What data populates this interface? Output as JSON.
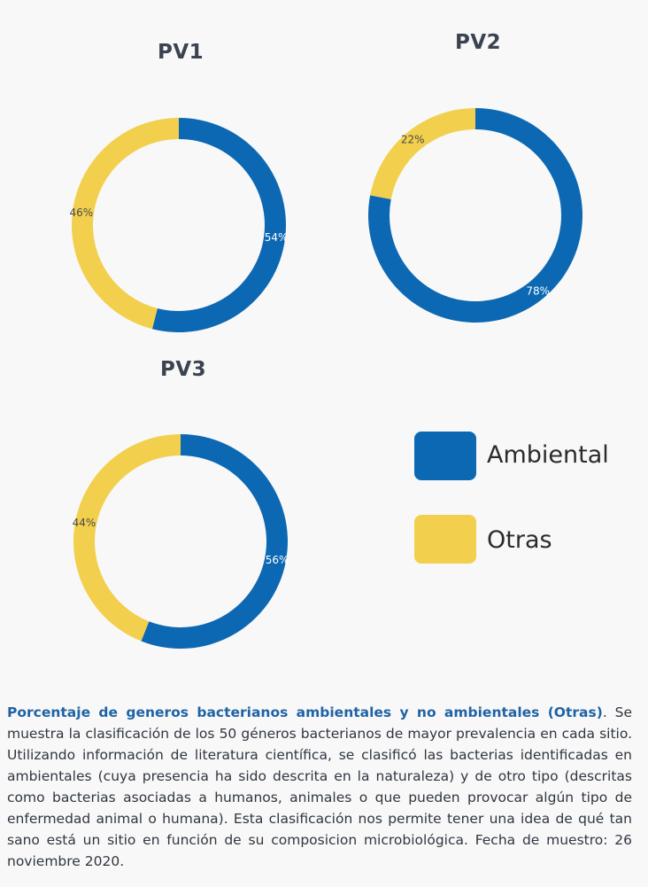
{
  "chart_data": [
    {
      "type": "pie",
      "title": "PV1",
      "slices": [
        {
          "name": "Ambiental",
          "value": 54,
          "label": "54%",
          "color": "#0c68b3"
        },
        {
          "name": "Otras",
          "value": 46,
          "label": "46%",
          "color": "#f2d04d"
        }
      ]
    },
    {
      "type": "pie",
      "title": "PV2",
      "slices": [
        {
          "name": "Ambiental",
          "value": 78,
          "label": "78%",
          "color": "#0c68b3"
        },
        {
          "name": "Otras",
          "value": 22,
          "label": "22%",
          "color": "#f2d04d"
        }
      ]
    },
    {
      "type": "pie",
      "title": "PV3",
      "slices": [
        {
          "name": "Ambiental",
          "value": 56,
          "label": "56%",
          "color": "#0c68b3"
        },
        {
          "name": "Otras",
          "value": 44,
          "label": "44%",
          "color": "#f2d04d"
        }
      ]
    }
  ],
  "legend": {
    "items": [
      {
        "label": "Ambiental",
        "color": "#0c68b3"
      },
      {
        "label": "Otras",
        "color": "#f2d04d"
      }
    ]
  },
  "caption": {
    "title": "Porcentaje de generos bacterianos ambientales y no ambientales (Otras)",
    "title_end": ".",
    "body": "Se muestra la clasificación de los 50 géneros bacterianos de mayor prevalencia en cada sitio. Utilizando información de literatura científica, se clasificó las bacterias identificadas en ambientales (cuya presencia ha sido descrita en la naturaleza) y de otro tipo (descritas como bacterias asociadas a humanos, animales o que pueden provocar algún tipo de enfermedad animal o humana). Esta clasificación nos permite tener una idea de qué tan sano está un sitio en función de su composicion microbiológica. Fecha de muestro: 26 noviembre 2020."
  }
}
